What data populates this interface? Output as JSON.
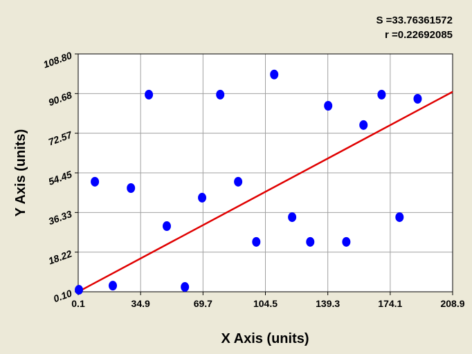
{
  "chart_data": {
    "type": "scatter",
    "annotations": [
      "S =33.76361572",
      "r =0.22692085"
    ],
    "x_label": "X Axis (units)",
    "y_label": "Y Axis (units)",
    "x": [
      0.5,
      9.4,
      19.4,
      29.5,
      39.5,
      49.5,
      59.6,
      69.2,
      79.3,
      89.3,
      99.4,
      109.4,
      119.4,
      129.5,
      139.5,
      149.6,
      159.2,
      169.3,
      179.3,
      189.4
    ],
    "values": [
      1.0,
      50.4,
      2.9,
      47.5,
      90.2,
      30.1,
      2.3,
      43.1,
      90.2,
      50.4,
      22.9,
      99.4,
      34.2,
      22.9,
      85.1,
      22.9,
      76.3,
      90.2,
      34.2,
      88.3
    ],
    "color": "#0000ff",
    "trend_line": {
      "x": [
        0.1,
        208.9
      ],
      "values": [
        0.1,
        91.5
      ],
      "color": "#e00000"
    },
    "xlim": [
      0.1,
      208.9
    ],
    "xticks": [
      0.1,
      34.9,
      69.7,
      104.5,
      139.3,
      174.1,
      208.9
    ],
    "ylim": [
      0.1,
      108.8
    ],
    "yticks": [
      {
        "value": 0.1,
        "label": "0.10"
      },
      18.22,
      36.33,
      54.45,
      72.57,
      90.68,
      {
        "value": 108.8,
        "label": "108.80"
      }
    ],
    "grid": true
  }
}
